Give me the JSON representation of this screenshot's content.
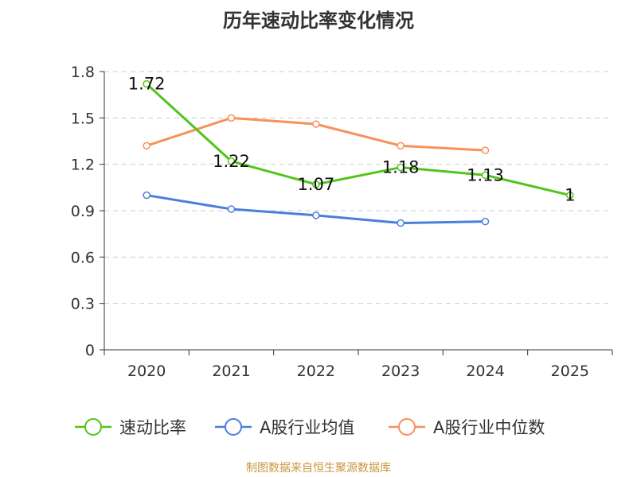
{
  "title": "历年速动比率变化情况",
  "source": "制图数据来自恒生聚源数据库",
  "chart_data": {
    "type": "line",
    "title": "历年速动比率变化情况",
    "categories": [
      "2020",
      "2021",
      "2022",
      "2023",
      "2024",
      "2025"
    ],
    "ylim": [
      0,
      1.8
    ],
    "yticks": [
      "0",
      "0.3",
      "0.6",
      "0.9",
      "1.2",
      "1.5",
      "1.8"
    ],
    "grid": true,
    "legend_position": "bottom",
    "series": [
      {
        "name": "速动比率",
        "color": "#52c41a",
        "values": [
          1.72,
          1.22,
          1.07,
          1.18,
          1.13,
          1
        ],
        "labels": [
          "1.72",
          "1.22",
          "1.07",
          "1.18",
          "1.13",
          "1"
        ]
      },
      {
        "name": "A股行业均值",
        "color": "#4a7fdc",
        "values": [
          1.0,
          0.91,
          0.87,
          0.82,
          0.83,
          null
        ]
      },
      {
        "name": "A股行业中位数",
        "color": "#f7915a",
        "values": [
          1.32,
          1.5,
          1.46,
          1.32,
          1.29,
          null
        ]
      }
    ]
  }
}
